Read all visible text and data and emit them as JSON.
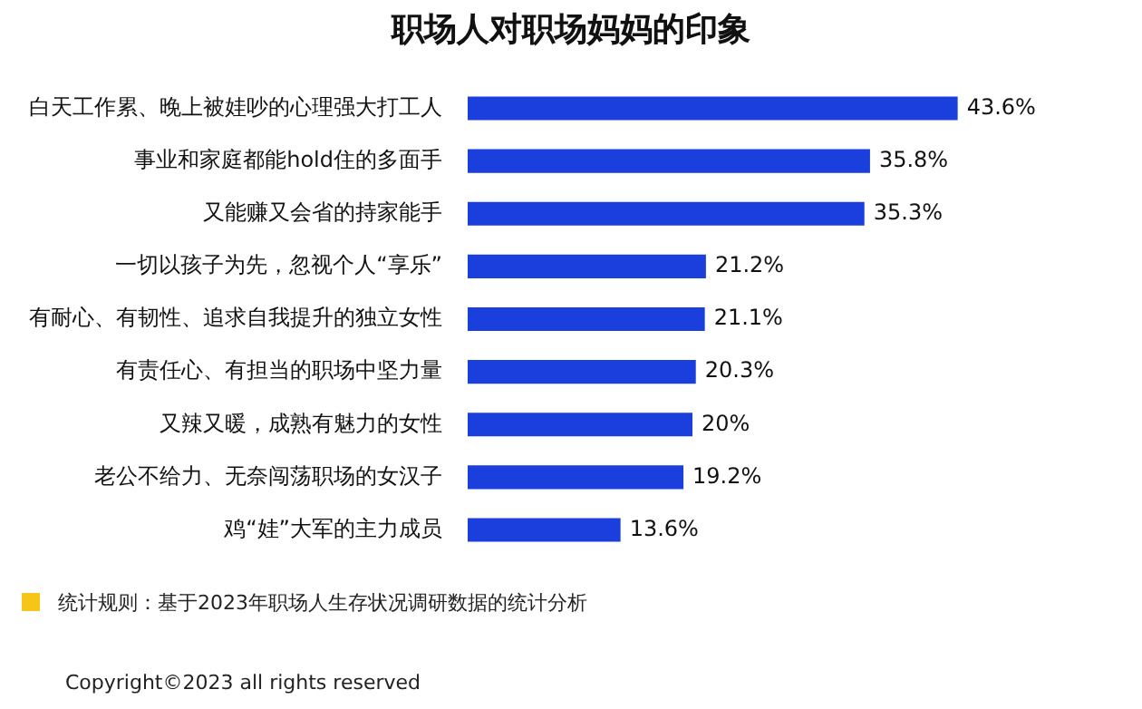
{
  "chart_data": {
    "type": "bar",
    "orientation": "horizontal",
    "title": "职场人对职场妈妈的印象",
    "categories": [
      "白天工作累、晚上被娃吵的心理强大打工人",
      "事业和家庭都能hold住的多面手",
      "又能赚又会省的持家能手",
      "一切以孩子为先，忽视个人“享乐”",
      "有耐心、有韧性、追求自我提升的独立女性",
      "有责任心、有担当的职场中坚力量",
      "又辣又暖，成熟有魅力的女性",
      "老公不给力、无奈闯荡职场的女汉子",
      "鸡“娃”大军的主力成员"
    ],
    "values": [
      43.6,
      35.8,
      35.3,
      21.2,
      21.1,
      20.3,
      20,
      19.2,
      13.6
    ],
    "value_labels": [
      "43.6%",
      "35.8%",
      "35.3%",
      "21.2%",
      "21.1%",
      "20.3%",
      "20%",
      "19.2%",
      "13.6%"
    ],
    "color": "#1a3fdc",
    "grid": false,
    "legend": false,
    "annotations": [
      "统计规则：基于2023年职场人生存状况调研数据的统计分析",
      "Copyright©2023 all rights reserved"
    ]
  }
}
